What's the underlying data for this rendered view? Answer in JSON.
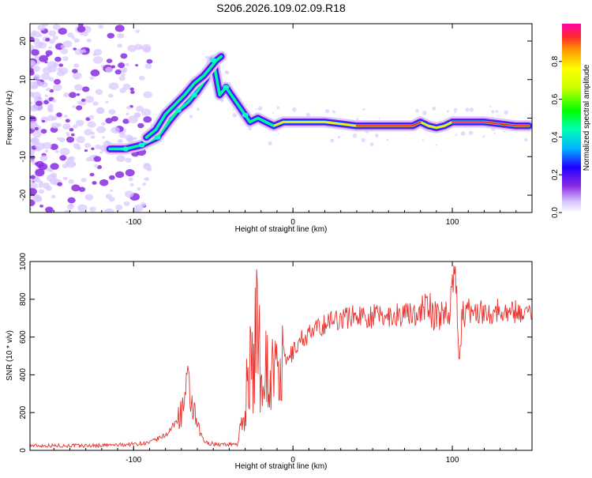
{
  "title": "S206.2026.109.02.09.R18",
  "chart_data": [
    {
      "type": "heatmap",
      "title": "S206.2026.109.02.09.R18",
      "xlabel": "Height of straight line (km)",
      "ylabel": "Frequency (Hz)",
      "xlim": [
        -165,
        150
      ],
      "ylim": [
        -24.5,
        24.5
      ],
      "xticks": [
        -100,
        0,
        100
      ],
      "yticks": [
        -20,
        -10,
        0,
        10,
        20
      ],
      "ridge": {
        "x": [
          -115,
          -105,
          -95,
          -85,
          -78,
          -72,
          -66,
          -60,
          -55,
          -50,
          -46,
          -42,
          -37,
          -32,
          -27,
          -22,
          -17,
          -12,
          -6,
          0,
          10,
          20,
          30,
          40,
          60,
          75,
          80,
          85,
          90,
          95,
          100,
          110,
          120,
          130,
          140,
          148
        ],
        "freq": [
          -8,
          -8,
          -7,
          -5,
          -1,
          2,
          4,
          7,
          10,
          15,
          6,
          8,
          5,
          2,
          -1,
          0,
          -1,
          -2,
          -1,
          -1,
          -1,
          -1,
          -1.5,
          -2,
          -2,
          -2,
          -1,
          -2,
          -2.5,
          -2,
          -1,
          -1,
          -1,
          -1.5,
          -2,
          -2
        ]
      },
      "branch": {
        "x": [
          -92,
          -86,
          -80,
          -74,
          -68,
          -62,
          -56,
          -52,
          -48,
          -45
        ],
        "freq": [
          -5,
          -3,
          1,
          3.5,
          6,
          9,
          11,
          13,
          15,
          16
        ]
      },
      "colorbar": {
        "label": "Normalized spectral amplitude",
        "ticks": [
          "0.0",
          "0.2",
          "0.4",
          "0.6",
          "0.8"
        ],
        "tick_values": [
          0,
          0.2,
          0.4,
          0.6,
          0.8
        ]
      }
    },
    {
      "type": "line",
      "xlabel": "Height of straight line (km)",
      "ylabel": "SNR (10 * v/v)",
      "xlim": [
        -165,
        150
      ],
      "ylim": [
        0,
        1000
      ],
      "xticks": [
        -100,
        0,
        100
      ],
      "yticks": [
        0,
        200,
        400,
        600,
        800,
        1000
      ],
      "series": [
        {
          "name": "SNR",
          "color": "#e8332f",
          "x": [
            -165,
            -150,
            -130,
            -110,
            -90,
            -80,
            -75,
            -70,
            -66,
            -63,
            -60,
            -55,
            -45,
            -35,
            -30,
            -28,
            -25,
            -22,
            -20,
            -18,
            -15,
            -12,
            -10,
            -5,
            0,
            5,
            10,
            15,
            20,
            25,
            30,
            40,
            50,
            60,
            70,
            80,
            85,
            88,
            92,
            98,
            102,
            104,
            106,
            110,
            120,
            130,
            140,
            150
          ],
          "y": [
            25,
            25,
            25,
            28,
            40,
            80,
            130,
            200,
            330,
            230,
            120,
            40,
            30,
            35,
            200,
            480,
            400,
            780,
            300,
            550,
            350,
            450,
            380,
            460,
            520,
            590,
            610,
            640,
            670,
            690,
            700,
            715,
            710,
            715,
            720,
            730,
            780,
            700,
            720,
            740,
            1000,
            440,
            700,
            740,
            730,
            740,
            735,
            730
          ]
        }
      ]
    }
  ]
}
